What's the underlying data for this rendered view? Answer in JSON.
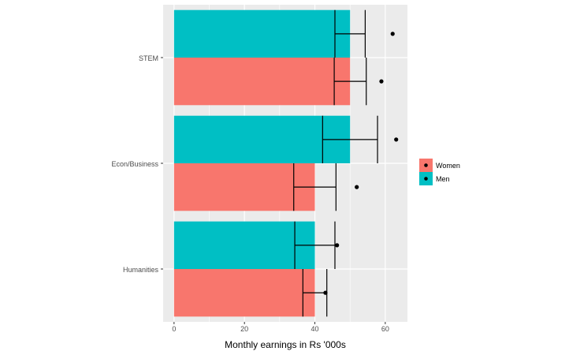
{
  "chart_data": {
    "type": "bar",
    "orientation": "horizontal",
    "title": "",
    "xlabel": "Monthly earnings in Rs '000s",
    "ylabel": "",
    "xlim": [
      -3.1,
      66.3
    ],
    "xticks": [
      0,
      20,
      40,
      60
    ],
    "grid": true,
    "legend_position": "right",
    "categories": [
      "STEM",
      "Econ/Business",
      "Humanities"
    ],
    "series": [
      {
        "name": "Women",
        "color": "#F8766D",
        "values": [
          50,
          40,
          40
        ],
        "error_low": [
          45.5,
          34.0,
          36.6
        ],
        "error_high": [
          54.6,
          46.0,
          43.4
        ],
        "points": [
          58.9,
          51.9,
          43.0
        ]
      },
      {
        "name": "Men",
        "color": "#00BFC4",
        "values": [
          50,
          50,
          40
        ],
        "error_low": [
          45.7,
          42.2,
          34.3
        ],
        "error_high": [
          54.3,
          57.8,
          45.7
        ],
        "points": [
          62.1,
          63.1,
          46.3
        ]
      }
    ]
  }
}
